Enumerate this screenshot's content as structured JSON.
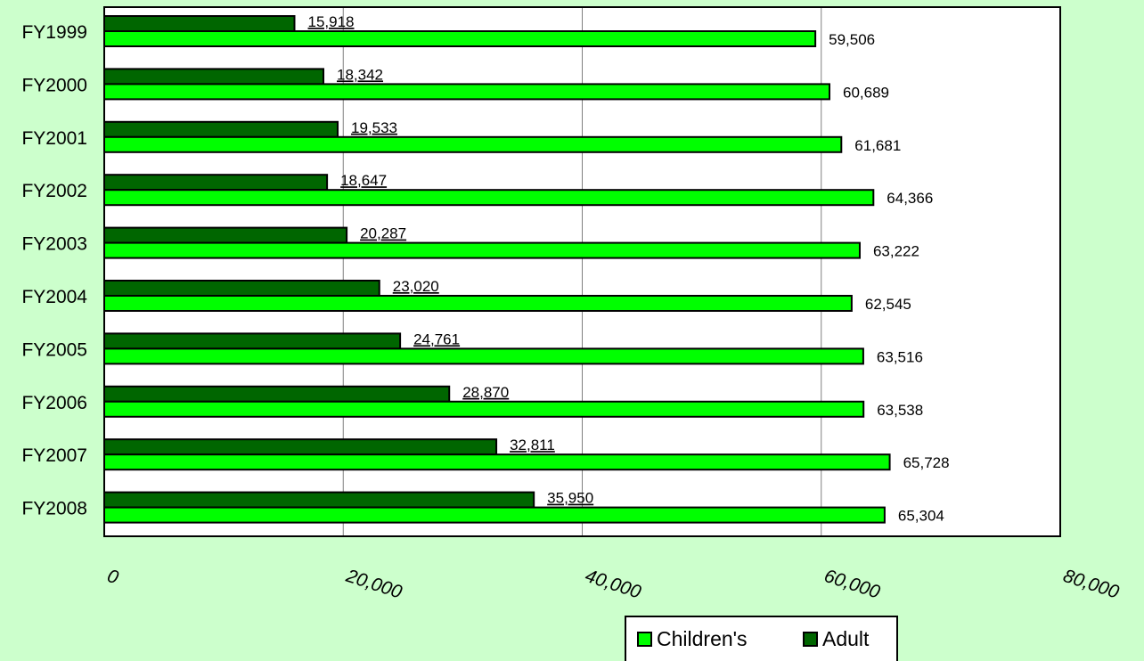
{
  "chart_data": {
    "type": "bar",
    "orientation": "horizontal",
    "categories": [
      "FY1999",
      "FY2000",
      "FY2001",
      "FY2002",
      "FY2003",
      "FY2004",
      "FY2005",
      "FY2006",
      "FY2007",
      "FY2008"
    ],
    "series": [
      {
        "name": "Adult",
        "color": "#006600",
        "values": [
          15918,
          18342,
          19533,
          18647,
          20287,
          23020,
          24761,
          28870,
          32811,
          35950
        ],
        "value_labels": [
          "15,918",
          "18,342",
          "19,533",
          "18,647",
          "20,287",
          "23,020",
          "24,761",
          "28,870",
          "32,811",
          "35,950"
        ]
      },
      {
        "name": "Children's",
        "color": "#00ff00",
        "values": [
          59506,
          60689,
          61681,
          64366,
          63222,
          62545,
          63516,
          63538,
          65728,
          65304
        ],
        "value_labels": [
          "59,506",
          "60,689",
          "61,681",
          "64,366",
          "63,222",
          "62,545",
          "63,516",
          "63,538",
          "65,728",
          "65,304"
        ]
      }
    ],
    "xlim": [
      0,
      80000
    ],
    "x_ticks": [
      0,
      20000,
      40000,
      60000,
      80000
    ],
    "x_tick_labels": [
      "0",
      "20,000",
      "40,000",
      "60,000",
      "80,000"
    ],
    "grid": true,
    "legend": {
      "placement": "bottom",
      "entries": [
        "Children's",
        "Adult"
      ]
    },
    "colors": {
      "background": "#ccffcc",
      "plot_background": "#ffffff"
    },
    "title": "",
    "xlabel": "",
    "ylabel": ""
  }
}
